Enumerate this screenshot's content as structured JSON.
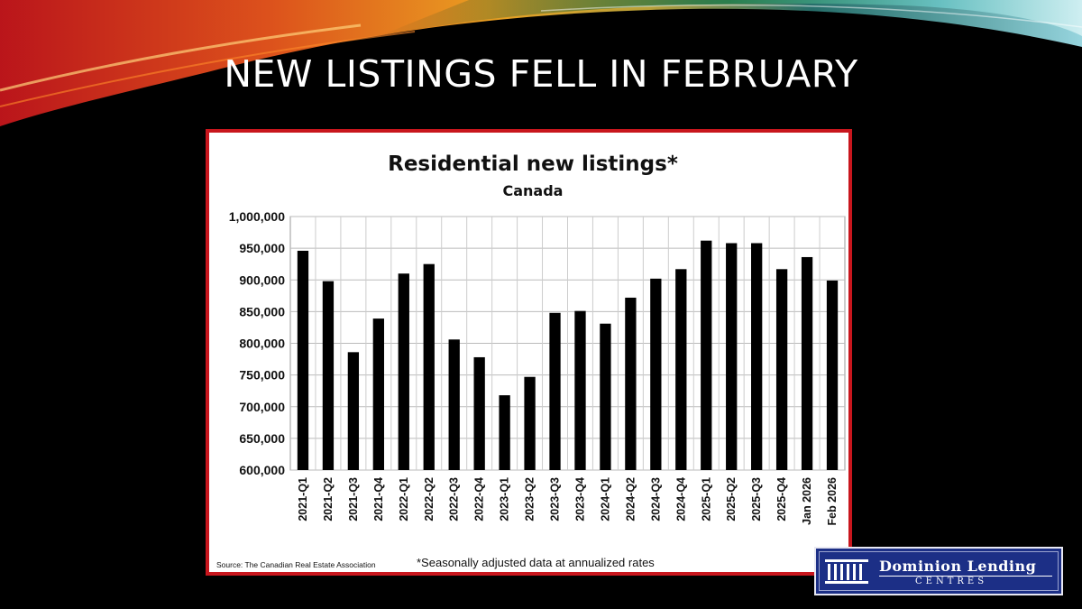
{
  "slide": {
    "title": "NEW LISTINGS FELL IN FEBRUARY"
  },
  "logo": {
    "line1": "Dominion Lending",
    "line2": "CENTRES",
    "icon": "building-columns-icon"
  },
  "colors": {
    "background": "#000000",
    "frame_border": "#c8161d",
    "bar": "#000000",
    "logo_bg": "#1c2f86"
  },
  "chart_data": {
    "type": "bar",
    "title": "Residential new listings*",
    "subtitle": "Canada",
    "xlabel": "",
    "ylabel": "",
    "ylim": [
      600000,
      1000000
    ],
    "ytick_step": 50000,
    "yticks": [
      "1,000,000",
      "950,000",
      "900,000",
      "850,000",
      "800,000",
      "750,000",
      "700,000",
      "650,000",
      "600,000"
    ],
    "grid": true,
    "categories": [
      "2021-Q1",
      "2021-Q2",
      "2021-Q3",
      "2021-Q4",
      "2022-Q1",
      "2022-Q2",
      "2022-Q3",
      "2022-Q4",
      "2023-Q1",
      "2023-Q2",
      "2023-Q3",
      "2023-Q4",
      "2024-Q1",
      "2024-Q2",
      "2024-Q3",
      "2024-Q4",
      "2025-Q1",
      "2025-Q2",
      "2025-Q3",
      "2025-Q4",
      "Jan 2026",
      "Feb 2026"
    ],
    "values": [
      946000,
      898000,
      786000,
      839000,
      910000,
      925000,
      806000,
      778000,
      718000,
      747000,
      848000,
      851000,
      831000,
      872000,
      902000,
      917000,
      962000,
      958000,
      958000,
      917000,
      936000,
      899000
    ],
    "source": "Source: The Canadian Real Estate Association",
    "footnote": "*Seasonally adjusted data at annualized rates"
  }
}
